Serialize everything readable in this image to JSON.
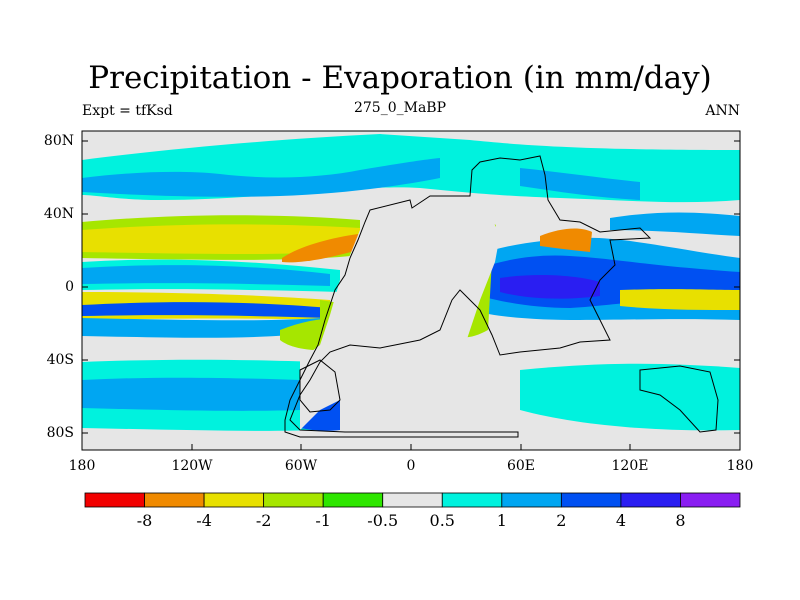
{
  "title": "Precipitation - Evaporation (in mm/day)",
  "subtitle": "275_0_MaBP",
  "left_label": "Expt = tfKsd",
  "right_label": "ANN",
  "axes": {
    "x_ticks": [
      "180",
      "120W",
      "60W",
      "0",
      "60E",
      "120E",
      "180"
    ],
    "y_ticks": [
      "80N",
      "40N",
      "0",
      "40S",
      "80S"
    ]
  },
  "colorbar": {
    "colors": [
      "#f20000",
      "#f08a00",
      "#e8e000",
      "#a6e600",
      "#2ee600",
      "#e6e6e6",
      "#00f2de",
      "#00a6f2",
      "#0050f2",
      "#2a1ef2",
      "#8a1ef2"
    ],
    "labels": [
      "-8",
      "-4",
      "-2",
      "-1",
      "-0.5",
      "0.5",
      "1",
      "2",
      "4",
      "8"
    ]
  },
  "chart_data": {
    "type": "heatmap",
    "title": "Precipitation - Evaporation (in mm/day)",
    "variable": "P - E",
    "units": "mm/day",
    "period": "ANN",
    "experiment": "tfKsd",
    "xlim": [
      -180,
      180
    ],
    "ylim": [
      -90,
      90
    ],
    "levels": [
      -8,
      -4,
      -2,
      -1,
      -0.5,
      0.5,
      1,
      2,
      4,
      8
    ]
  }
}
